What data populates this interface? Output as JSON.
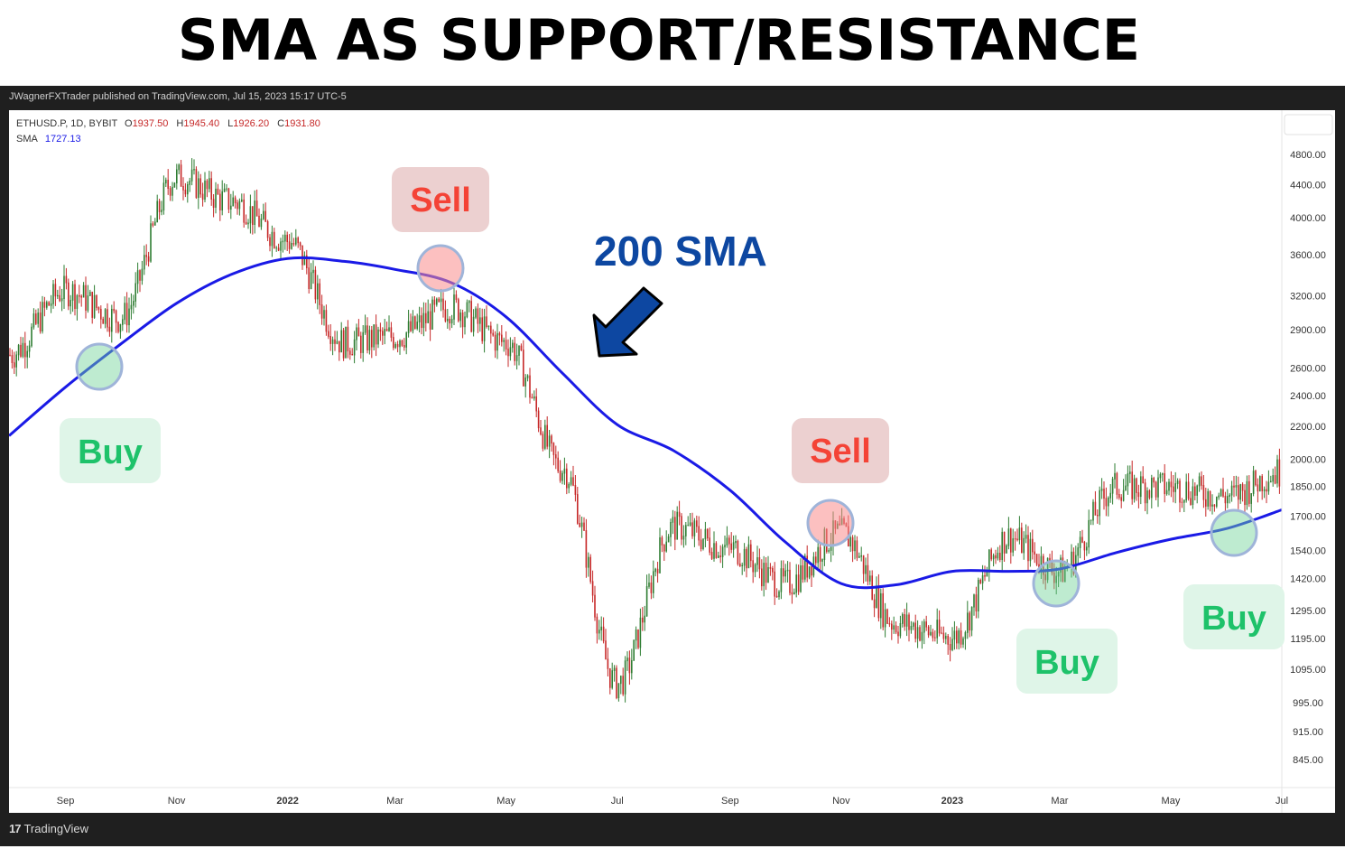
{
  "title": "SMA AS SUPPORT/RESISTANCE",
  "published_by": "JWagnerFXTrader published on TradingView.com, Jul 15, 2023 15:17 UTC-5",
  "footer_brand": "TradingView",
  "symbol_line": {
    "symbol": "ETHUSD.P, 1D, BYBIT",
    "open_label": "O",
    "open": "1937.50",
    "high_label": "H",
    "high": "1945.40",
    "low_label": "L",
    "low": "1926.20",
    "close_label": "C",
    "close": "1931.80"
  },
  "sma_line": {
    "label": "SMA",
    "value": "1727.13"
  },
  "annotations": {
    "sma_label": "200 SMA",
    "sell_1": "Sell",
    "sell_2": "Sell",
    "buy_1": "Buy",
    "buy_2": "Buy",
    "buy_3": "Buy"
  },
  "colors": {
    "sma": "#1a1ae6",
    "candle_up": "#2e7d32",
    "candle_down": "#c62828",
    "sell_text": "#f44336",
    "sell_bg": "#ecd0d0",
    "buy_text": "#1ec26a",
    "buy_bg": "#dff5e8",
    "arrow": "#0d47a1",
    "sma_label": "#0d47a1"
  },
  "chart_data": {
    "type": "line",
    "y_scale": "log",
    "ylim": [
      800,
      5200
    ],
    "y_ticks": [
      "4800.00",
      "4400.00",
      "4000.00",
      "3600.00",
      "3200.00",
      "2900.00",
      "2600.00",
      "2400.00",
      "2200.00",
      "2000.00",
      "1850.00",
      "1700.00",
      "1540.00",
      "1420.00",
      "1295.00",
      "1195.00",
      "1095.00",
      "995.00",
      "915.00",
      "845.00"
    ],
    "x_ticks": [
      "Sep",
      "Nov",
      "2022",
      "Mar",
      "May",
      "Jul",
      "Sep",
      "Nov",
      "2023",
      "Mar",
      "May",
      "Jul"
    ],
    "x": [
      "2021-08-01",
      "2021-09-01",
      "2021-10-01",
      "2021-11-01",
      "2021-12-01",
      "2022-01-01",
      "2022-02-01",
      "2022-03-01",
      "2022-04-01",
      "2022-05-01",
      "2022-06-01",
      "2022-07-01",
      "2022-08-01",
      "2022-09-01",
      "2022-10-01",
      "2022-11-01",
      "2022-12-01",
      "2023-01-01",
      "2023-02-01",
      "2023-03-01",
      "2023-04-01",
      "2023-05-01",
      "2023-06-01",
      "2023-07-01"
    ],
    "series": [
      {
        "name": "SMA",
        "values": [
          2140,
          2460,
          2780,
          3130,
          3400,
          3560,
          3530,
          3450,
          3320,
          3010,
          2560,
          2210,
          2050,
          1830,
          1580,
          1400,
          1395,
          1450,
          1450,
          1460,
          1530,
          1590,
          1640,
          1730
        ]
      },
      {
        "name": "ETHUSD.P",
        "values": [
          2700,
          3250,
          3000,
          4500,
          4200,
          3750,
          2800,
          2850,
          3100,
          2800,
          1950,
          1050,
          1650,
          1550,
          1400,
          1620,
          1250,
          1200,
          1600,
          1450,
          1850,
          1850,
          1800,
          1931.8
        ]
      }
    ],
    "grid": false,
    "legend": "top-left"
  }
}
